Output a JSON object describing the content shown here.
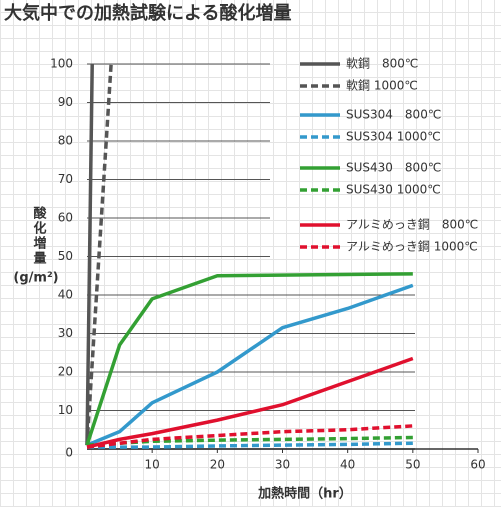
{
  "chart_data": {
    "type": "line",
    "title": "大気中での加熱試験による酸化増量",
    "x_label": "加熱時間（hr）",
    "y_label": "酸化増量",
    "y_unit": "(g/m²)",
    "xlim": [
      0,
      60
    ],
    "xticks": [
      10,
      20,
      30,
      40,
      50,
      60
    ],
    "ylim": [
      0,
      100
    ],
    "yticks": [
      0,
      10,
      20,
      30,
      40,
      50,
      60,
      70,
      80,
      90,
      100
    ],
    "grid": true,
    "series": [
      {
        "name": "軟鋼　800℃",
        "color": "#555555",
        "dashed": false,
        "x": [
          0,
          0.8
        ],
        "values": [
          1,
          100
        ]
      },
      {
        "name": "軟鋼 1000℃",
        "color": "#555555",
        "dashed": true,
        "x": [
          0,
          3.7
        ],
        "values": [
          1,
          100
        ]
      },
      {
        "name": "SUS304　800℃",
        "color": "#3399cc",
        "dashed": false,
        "x": [
          0,
          5,
          10,
          20,
          30,
          40,
          50
        ],
        "values": [
          1,
          4.5,
          12,
          20,
          31.5,
          36.5,
          42.5
        ]
      },
      {
        "name": "SUS304 1000℃",
        "color": "#3399cc",
        "dashed": true,
        "x": [
          0,
          10,
          20,
          30,
          40,
          50
        ],
        "values": [
          0.5,
          0.5,
          0.8,
          1,
          1.2,
          1.5
        ]
      },
      {
        "name": "SUS430　800℃",
        "color": "#33a033",
        "dashed": false,
        "x": [
          0,
          5,
          10,
          20,
          50
        ],
        "values": [
          1,
          27,
          39,
          45,
          45.5
        ]
      },
      {
        "name": "SUS430 1000℃",
        "color": "#33a033",
        "dashed": true,
        "x": [
          0,
          5,
          10,
          20,
          30,
          40,
          50
        ],
        "values": [
          1,
          1.5,
          2,
          2.3,
          2.5,
          2.7,
          3
        ]
      },
      {
        "name": "アルミめっき鋼　800℃",
        "color": "#e0102e",
        "dashed": false,
        "x": [
          0,
          5,
          10,
          20,
          30,
          40,
          50
        ],
        "values": [
          0.5,
          2.5,
          4,
          7.5,
          11.5,
          17.5,
          23.5
        ]
      },
      {
        "name": "アルミめっき鋼 1000℃",
        "color": "#e0102e",
        "dashed": true,
        "x": [
          0,
          5,
          10,
          20,
          30,
          40,
          50
        ],
        "values": [
          0.5,
          1.5,
          2.5,
          3.5,
          4.5,
          5,
          6
        ]
      }
    ]
  }
}
